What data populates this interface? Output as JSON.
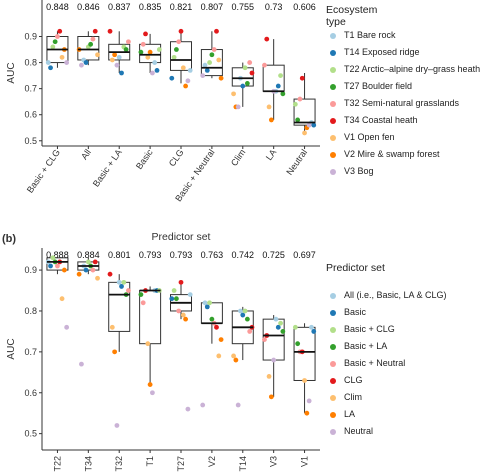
{
  "chart_data": [
    {
      "type": "box",
      "y_label": "AUC",
      "x_label": "Predictor set",
      "legend_title": "Ecosystem type",
      "categories": [
        "Basic + CLG",
        "All",
        "Basic + LA",
        "Basic",
        "CLG",
        "Basic + Neutral",
        "Clim",
        "LA",
        "Neutral"
      ],
      "top_labels": [
        0.848,
        0.846,
        0.837,
        0.835,
        0.821,
        0.807,
        0.755,
        0.73,
        0.606
      ],
      "ylim": [
        0.48,
        1.04
      ],
      "yticks": [
        0.5,
        0.6,
        0.7,
        0.8,
        0.9
      ],
      "boxes": [
        {
          "whislo": 0.78,
          "q1": 0.8,
          "med": 0.85,
          "q3": 0.9,
          "whishi": 0.92
        },
        {
          "whislo": 0.79,
          "q1": 0.81,
          "med": 0.85,
          "q3": 0.9,
          "whishi": 0.92
        },
        {
          "whislo": 0.76,
          "q1": 0.81,
          "med": 0.84,
          "q3": 0.87,
          "whishi": 0.92
        },
        {
          "whislo": 0.76,
          "q1": 0.8,
          "med": 0.83,
          "q3": 0.87,
          "whishi": 0.91
        },
        {
          "whislo": 0.72,
          "q1": 0.77,
          "med": 0.81,
          "q3": 0.88,
          "whishi": 0.92
        },
        {
          "whislo": 0.74,
          "q1": 0.75,
          "med": 0.78,
          "q3": 0.85,
          "whishi": 0.92
        },
        {
          "whislo": 0.63,
          "q1": 0.71,
          "med": 0.74,
          "q3": 0.78,
          "whishi": 0.8
        },
        {
          "whislo": 0.58,
          "q1": 0.69,
          "med": 0.69,
          "q3": 0.79,
          "whishi": 0.89
        },
        {
          "whislo": 0.53,
          "q1": 0.56,
          "med": 0.57,
          "q3": 0.66,
          "whishi": 0.76
        }
      ],
      "series": [
        {
          "name": "T1  Bare rock",
          "color": "#a6cee3",
          "values": [
            0.8,
            0.81,
            0.82,
            0.8,
            0.77,
            0.79,
            0.74,
            0.69,
            0.57
          ]
        },
        {
          "name": "T14  Exposed ridge",
          "color": "#1f78b4",
          "values": [
            0.78,
            0.8,
            0.76,
            0.77,
            0.74,
            0.77,
            0.71,
            0.71,
            0.56
          ]
        },
        {
          "name": "T22  Arctic–alpine dry–grass heath",
          "color": "#b2df8a",
          "values": [
            0.86,
            0.86,
            0.86,
            0.85,
            0.82,
            0.8,
            0.78,
            0.75,
            0.64
          ]
        },
        {
          "name": "T27  Boulder field",
          "color": "#33a02c",
          "values": [
            0.88,
            0.87,
            0.85,
            0.84,
            0.85,
            0.83,
            0.72,
            0.68,
            0.58
          ]
        },
        {
          "name": "T32  Semi-natural grasslands",
          "color": "#fb9a99",
          "values": [
            0.9,
            0.89,
            0.88,
            0.87,
            0.88,
            0.85,
            0.8,
            0.79,
            0.66
          ]
        },
        {
          "name": "T34  Coastal heath",
          "color": "#e31a1c",
          "values": [
            0.92,
            0.92,
            0.92,
            0.91,
            0.92,
            0.92,
            0.76,
            0.89,
            0.74
          ]
        },
        {
          "name": "V1  Open fen",
          "color": "#fdbf6f",
          "values": [
            0.82,
            0.83,
            0.81,
            0.82,
            0.78,
            0.81,
            0.68,
            0.63,
            0.53
          ]
        },
        {
          "name": "V2  Mire & swamp forest",
          "color": "#ff7f00",
          "values": [
            0.85,
            0.85,
            0.83,
            0.84,
            0.71,
            0.74,
            0.63,
            0.58,
            0.55
          ]
        },
        {
          "name": "V3  Bog",
          "color": "#cab2d6",
          "values": [
            0.8,
            0.79,
            0.79,
            0.76,
            0.73,
            0.75,
            0.63,
            0.69,
            0.56
          ]
        }
      ]
    },
    {
      "type": "box",
      "panel_label": "(b)",
      "y_label": "AUC",
      "legend_title": "Predictor set",
      "categories": [
        "T22",
        "T34",
        "T32",
        "T1",
        "T27",
        "V2",
        "T14",
        "V3",
        "V1"
      ],
      "top_labels": [
        0.888,
        0.884,
        0.801,
        0.793,
        0.793,
        0.763,
        0.742,
        0.725,
        0.697
      ],
      "ylim": [
        0.46,
        0.954
      ],
      "yticks": [
        0.5,
        0.6,
        0.7,
        0.8,
        0.9
      ],
      "boxes": [
        {
          "whislo": 0.89,
          "q1": 0.9,
          "med": 0.92,
          "q3": 0.93,
          "whishi": 0.93
        },
        {
          "whislo": 0.89,
          "q1": 0.9,
          "med": 0.91,
          "q3": 0.92,
          "whishi": 0.93
        },
        {
          "whislo": 0.7,
          "q1": 0.75,
          "med": 0.84,
          "q3": 0.87,
          "whishi": 0.89
        },
        {
          "whislo": 0.62,
          "q1": 0.72,
          "med": 0.85,
          "q3": 0.85,
          "whishi": 0.86
        },
        {
          "whislo": 0.78,
          "q1": 0.8,
          "med": 0.82,
          "q3": 0.84,
          "whishi": 0.87
        },
        {
          "whislo": 0.72,
          "q1": 0.77,
          "med": 0.77,
          "q3": 0.82,
          "whishi": 0.82
        },
        {
          "whislo": 0.68,
          "q1": 0.72,
          "med": 0.76,
          "q3": 0.8,
          "whishi": 0.81
        },
        {
          "whislo": 0.59,
          "q1": 0.68,
          "med": 0.74,
          "q3": 0.78,
          "whishi": 0.79
        },
        {
          "whislo": 0.55,
          "q1": 0.63,
          "med": 0.7,
          "q3": 0.76,
          "whishi": 0.77
        }
      ],
      "series": [
        {
          "name": "All (i.e., Basic, LA & CLG)",
          "color": "#a6cee3",
          "values": [
            0.92,
            0.91,
            0.87,
            0.85,
            0.84,
            0.82,
            0.8,
            0.78,
            0.76
          ]
        },
        {
          "name": "Basic",
          "color": "#1f78b4",
          "values": [
            0.91,
            0.9,
            0.86,
            0.85,
            0.83,
            0.81,
            0.79,
            0.76,
            0.75
          ]
        },
        {
          "name": "Basic + CLG",
          "color": "#b2df8a",
          "values": [
            0.93,
            0.92,
            0.87,
            0.85,
            0.85,
            0.82,
            0.8,
            0.77,
            0.76
          ]
        },
        {
          "name": "Basic + LA",
          "color": "#33a02c",
          "values": [
            0.92,
            0.91,
            0.84,
            0.84,
            0.83,
            0.78,
            0.78,
            0.75,
            0.72
          ]
        },
        {
          "name": "Basic + Neutral",
          "color": "#fb9a99",
          "values": [
            0.91,
            0.9,
            0.85,
            0.82,
            0.8,
            0.77,
            0.75,
            0.73,
            0.7
          ]
        },
        {
          "name": "CLG",
          "color": "#e31a1c",
          "values": [
            0.92,
            0.92,
            0.89,
            0.85,
            0.87,
            0.76,
            0.76,
            0.74,
            0.7
          ]
        },
        {
          "name": "Clim",
          "color": "#fdbf6f",
          "values": [
            0.83,
            0.88,
            0.76,
            0.72,
            0.79,
            0.69,
            0.69,
            0.64,
            0.63
          ]
        },
        {
          "name": "LA",
          "color": "#ff7f00",
          "values": [
            0.9,
            0.89,
            0.7,
            0.62,
            0.78,
            0.73,
            0.68,
            0.59,
            0.55
          ]
        },
        {
          "name": "Neutral",
          "color": "#cab2d6",
          "values": [
            0.76,
            0.67,
            0.52,
            0.6,
            0.56,
            0.57,
            0.57,
            0.68,
            0.58
          ]
        }
      ]
    }
  ]
}
